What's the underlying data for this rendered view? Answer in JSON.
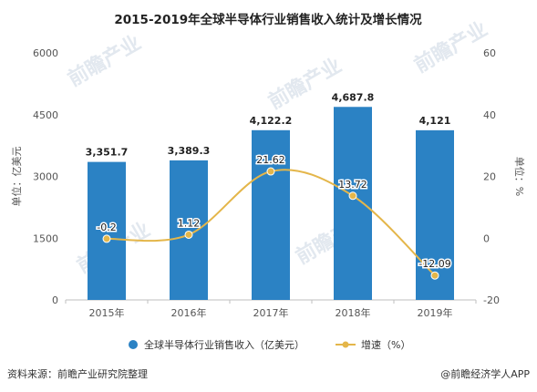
{
  "chart_data": {
    "type": "bar",
    "title": "2015-2019年全球半导体行业销售收入统计及增长情况",
    "categories": [
      "2015年",
      "2016年",
      "2017年",
      "2018年",
      "2019年"
    ],
    "series": [
      {
        "name": "全球半导体行业销售收入（亿美元）",
        "type": "bar",
        "axis": "left",
        "color": "#2b82c4",
        "values": [
          3351.7,
          3389.3,
          4122.2,
          4687.8,
          4121
        ],
        "labels": [
          "3,351.7",
          "3,389.3",
          "4,122.2",
          "4,687.8",
          "4,121"
        ]
      },
      {
        "name": "增速（%）",
        "type": "line",
        "axis": "right",
        "color": "#e4b64a",
        "values": [
          -0.2,
          1.12,
          21.62,
          13.72,
          -12.09
        ],
        "labels": [
          "-0.2",
          "1.12",
          "21.62",
          "13.72",
          "-12.09"
        ]
      }
    ],
    "ylabel_left": "单位：亿美元",
    "ylabel_right": "单位：%",
    "ylim_left": [
      0,
      6000
    ],
    "yticks_left": [
      0,
      1500,
      3000,
      4500,
      6000
    ],
    "ylim_right": [
      -20,
      60
    ],
    "yticks_right": [
      -20,
      0,
      20,
      40,
      60
    ],
    "grid": false,
    "legend_position": "bottom"
  },
  "footer": {
    "source": "资料来源：前瞻产业研究院整理",
    "brand": "@前瞻经济学人APP"
  },
  "watermark": {
    "text": "前瞻产业"
  }
}
